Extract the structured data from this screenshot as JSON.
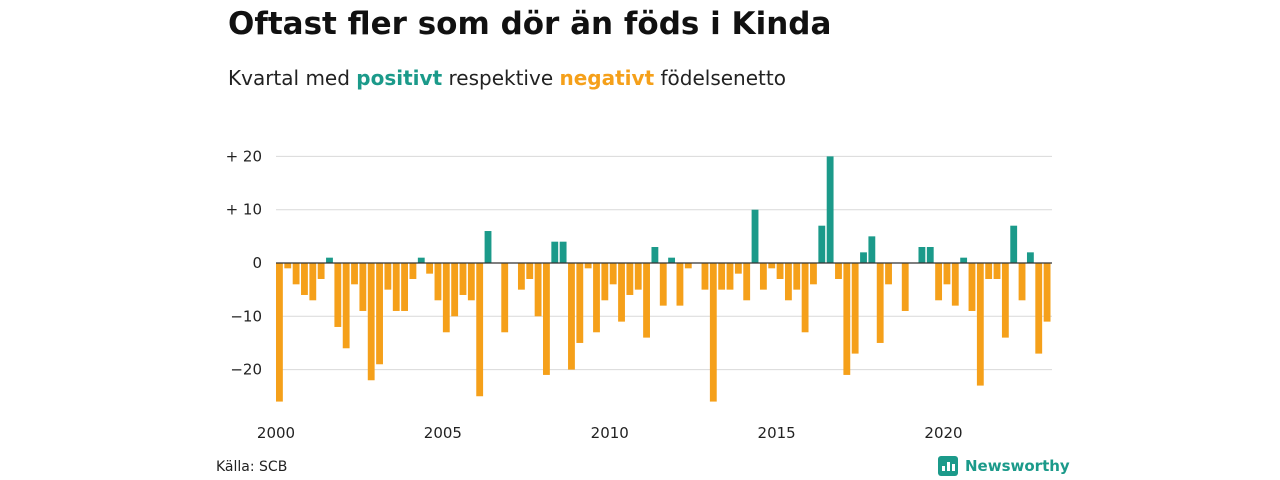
{
  "header": {
    "title": "Oftast fler som dör än föds i Kinda",
    "subtitle_start": "Kvartal med",
    "subtitle_positive": "positivt",
    "subtitle_middle": "respektive",
    "subtitle_negative": "negativt",
    "subtitle_end": "födelsenetto"
  },
  "footer": {
    "source": "Källa: SCB",
    "brand": "Newsworthy",
    "brand_icon": "bar-chart-logo-icon"
  },
  "colors": {
    "positive": "#1b9a8a",
    "negative": "#f5a01a",
    "grid": "#d9d9d9",
    "zero_line": "#333333"
  },
  "chart_data": {
    "type": "bar",
    "title": "Oftast fler som dör än föds i Kinda",
    "subtitle": "Kvartal med positivt respektive negativt födelsenetto",
    "xlabel": "",
    "ylabel": "",
    "ylim": [
      -27,
      20
    ],
    "yticks": [
      {
        "value": 20,
        "label": "+ 20"
      },
      {
        "value": 10,
        "label": "+ 10"
      },
      {
        "value": 0,
        "label": "0"
      },
      {
        "value": -10,
        "label": "−10"
      },
      {
        "value": -20,
        "label": "−20"
      }
    ],
    "xticks": [
      "2000",
      "2005",
      "2010",
      "2015",
      "2020"
    ],
    "start_year": 2000,
    "frequency": "quarterly",
    "grid": true,
    "legend": "none",
    "values": [
      -26,
      -1,
      -4,
      -6,
      -7,
      -3,
      1,
      -12,
      -16,
      -4,
      -9,
      -22,
      -19,
      -5,
      -9,
      -9,
      -3,
      1,
      -2,
      -7,
      -13,
      -10,
      -6,
      -7,
      -25,
      6,
      0,
      -13,
      0,
      -5,
      -3,
      -10,
      -21,
      4,
      4,
      -20,
      -15,
      -1,
      -13,
      -7,
      -4,
      -11,
      -6,
      -5,
      -14,
      3,
      -8,
      1,
      -8,
      -1,
      0,
      -5,
      -26,
      -5,
      -5,
      -2,
      -7,
      10,
      -5,
      -1,
      -3,
      -7,
      -5,
      -13,
      -4,
      7,
      20,
      -3,
      -21,
      -17,
      2,
      5,
      -15,
      -4,
      0,
      -9,
      0,
      3,
      3,
      -7,
      -4,
      -8,
      1,
      -9,
      -23,
      -3,
      -3,
      -14,
      7,
      -7,
      2,
      -17,
      -11
    ]
  }
}
